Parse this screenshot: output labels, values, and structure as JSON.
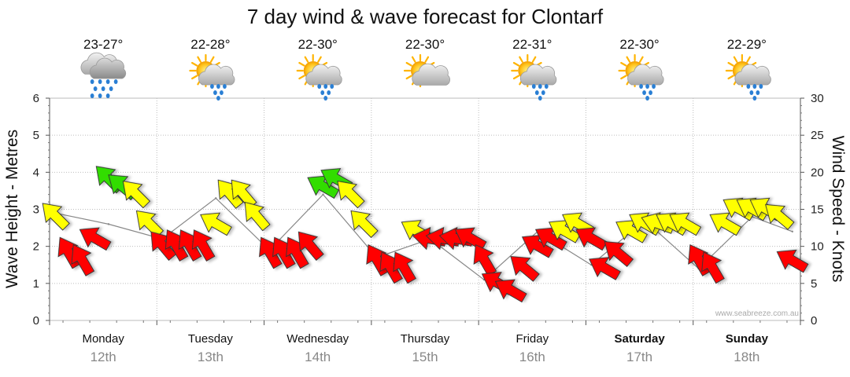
{
  "chart_data": {
    "type": "line",
    "title": "7 day wind & wave forecast for Clontarf",
    "ylabel_left": "Wave Height - Metres",
    "ylabel_right": "Wind Speed - Knots",
    "ylim_left": [
      0,
      6
    ],
    "ylim_right": [
      0,
      30
    ],
    "yticks_left": [
      "0",
      "1",
      "2",
      "3",
      "4",
      "5",
      "6"
    ],
    "yticks_right": [
      "0",
      "5",
      "10",
      "15",
      "20",
      "25",
      "30"
    ],
    "grid": true,
    "watermark": "www.seabreeze.com.au",
    "colors": {
      "light": "#ff0000",
      "moderate": "#ffff00",
      "strong": "#33dd00",
      "outline": "#333333",
      "line": "#888888"
    },
    "days": [
      {
        "day": "Monday",
        "date": "12th",
        "temp": "23-27°",
        "weather": "rain-cloud-icon",
        "bold": false
      },
      {
        "day": "Tuesday",
        "date": "13th",
        "temp": "22-28°",
        "weather": "sun-rain-icon",
        "bold": false
      },
      {
        "day": "Wednesday",
        "date": "14th",
        "temp": "22-30°",
        "weather": "sun-rain-icon",
        "bold": false
      },
      {
        "day": "Thursday",
        "date": "15th",
        "temp": "22-30°",
        "weather": "sun-cloud-icon",
        "bold": false
      },
      {
        "day": "Friday",
        "date": "16th",
        "temp": "22-31°",
        "weather": "sun-rain-icon",
        "bold": false
      },
      {
        "day": "Saturday",
        "date": "17th",
        "temp": "22-30°",
        "weather": "sun-rain-icon",
        "bold": true
      },
      {
        "day": "Sunday",
        "date": "18th",
        "temp": "22-29°",
        "weather": "sun-rain-icon",
        "bold": true
      }
    ],
    "wind_series": {
      "name": "Wind",
      "x": [
        0.0,
        0.125,
        0.25,
        0.375,
        0.5,
        0.625,
        0.75,
        0.875,
        1.0,
        1.125,
        1.25,
        1.375,
        1.5,
        1.625,
        1.75,
        1.875,
        2.0,
        2.125,
        2.25,
        2.375,
        2.5,
        2.625,
        2.75,
        2.875,
        3.0,
        3.125,
        3.25,
        3.375,
        3.5,
        3.625,
        3.75,
        3.875,
        4.0,
        4.125,
        4.25,
        4.375,
        4.5,
        4.625,
        4.75,
        4.875,
        5.0,
        5.125,
        5.25,
        5.375,
        5.5,
        5.625,
        5.75,
        5.875,
        6.0,
        6.125,
        6.25,
        6.375,
        6.5,
        6.625,
        6.75,
        6.875
      ],
      "speed_knots": [
        14,
        9,
        8,
        11,
        19,
        18,
        17,
        13,
        10,
        10,
        10,
        10,
        13,
        17,
        17,
        14,
        9,
        9,
        9,
        10,
        18,
        19,
        17,
        13,
        8,
        7,
        7,
        12,
        11,
        11,
        11,
        11,
        8,
        5,
        4,
        7,
        10,
        11,
        12,
        13,
        11,
        7,
        9,
        12,
        13,
        13,
        13,
        13,
        8,
        7,
        13,
        15,
        15,
        15,
        14,
        8
      ],
      "direction_deg": [
        315,
        330,
        330,
        300,
        315,
        310,
        315,
        315,
        320,
        330,
        330,
        330,
        300,
        320,
        320,
        320,
        330,
        330,
        330,
        320,
        300,
        300,
        315,
        315,
        330,
        330,
        330,
        300,
        280,
        280,
        280,
        300,
        330,
        300,
        300,
        310,
        300,
        300,
        300,
        300,
        300,
        300,
        310,
        300,
        300,
        290,
        300,
        300,
        330,
        330,
        300,
        300,
        300,
        300,
        310,
        300
      ]
    },
    "wave_series": {
      "name": "Wave",
      "x": [
        0.0,
        0.5,
        1.0,
        1.5,
        2.0,
        2.5,
        3.0,
        3.5,
        4.0,
        4.5,
        5.0,
        5.5,
        6.0,
        6.5,
        6.875
      ],
      "height_m": [
        2.9,
        2.6,
        2.2,
        3.3,
        1.9,
        3.4,
        1.7,
        2.2,
        1.1,
        2.4,
        1.5,
        2.7,
        1.4,
        2.8,
        2.4
      ]
    }
  }
}
